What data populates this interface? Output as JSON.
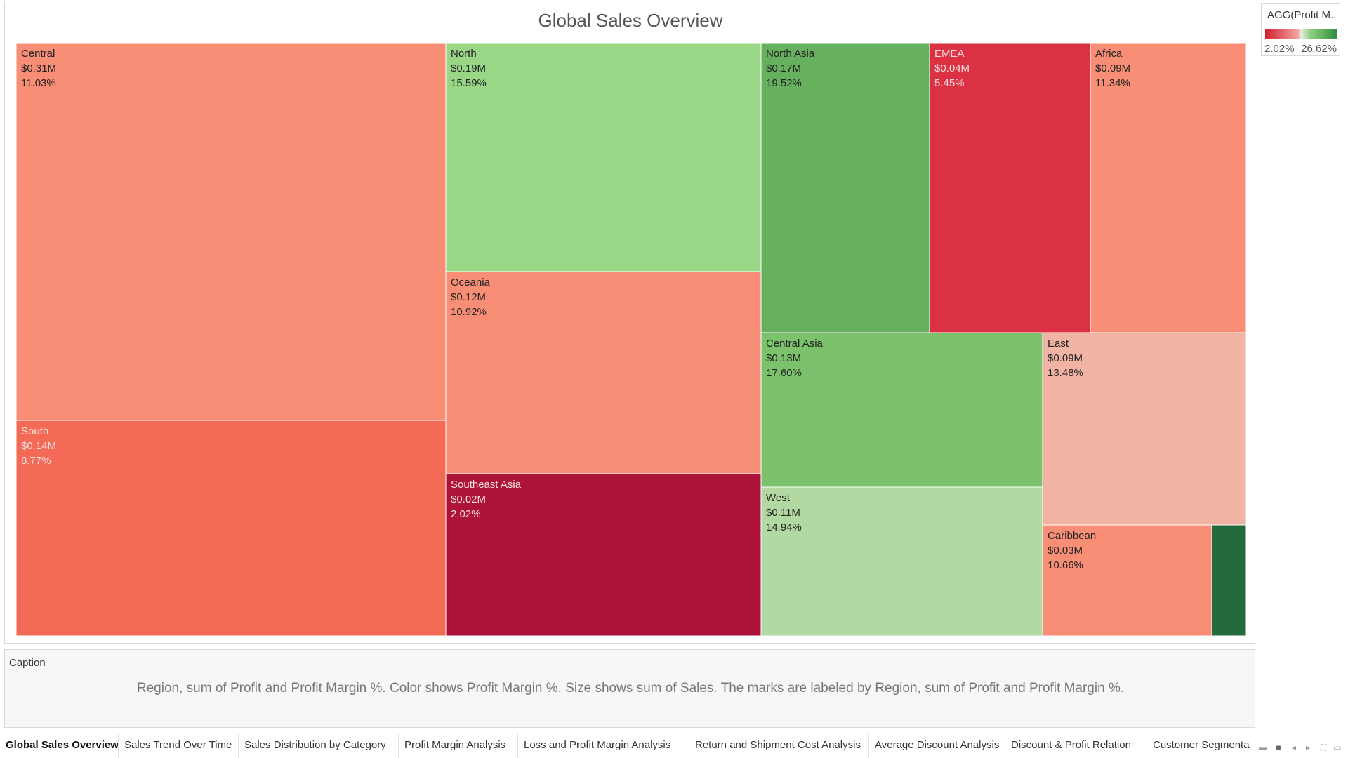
{
  "dashboard": {
    "title": "Global Sales Overview"
  },
  "legend": {
    "title": "AGG(Profit M...",
    "min_label": "2.02%",
    "max_label": "26.62%",
    "colors": {
      "low": "#d3202f",
      "mid": "#e8ede4",
      "high": "#2e8b3e"
    }
  },
  "chart_data": {
    "type": "treemap",
    "title": "Global Sales Overview",
    "size_measure": "sum of Sales",
    "color_measure": "Profit Margin %",
    "color_range": [
      2.02,
      26.62
    ],
    "items": [
      {
        "region": "Central",
        "profit": "$0.31M",
        "margin": "11.03%",
        "margin_value": 11.03,
        "color": "#f98e76"
      },
      {
        "region": "South",
        "profit": "$0.14M",
        "margin": "8.77%",
        "margin_value": 8.77,
        "color": "#f36b56"
      },
      {
        "region": "North",
        "profit": "$0.19M",
        "margin": "15.59%",
        "margin_value": 15.59,
        "color": "#99d787"
      },
      {
        "region": "Oceania",
        "profit": "$0.12M",
        "margin": "10.92%",
        "margin_value": 10.92,
        "color": "#f98e76"
      },
      {
        "region": "Southeast Asia",
        "profit": "$0.02M",
        "margin": "2.02%",
        "margin_value": 2.02,
        "color": "#ad1339"
      },
      {
        "region": "North Asia",
        "profit": "$0.17M",
        "margin": "19.52%",
        "margin_value": 19.52,
        "color": "#66b05e"
      },
      {
        "region": "EMEA",
        "profit": "$0.04M",
        "margin": "5.45%",
        "margin_value": 5.45,
        "color": "#dc3142"
      },
      {
        "region": "Africa",
        "profit": "$0.09M",
        "margin": "11.34%",
        "margin_value": 11.34,
        "color": "#f98e76"
      },
      {
        "region": "Central Asia",
        "profit": "$0.13M",
        "margin": "17.60%",
        "margin_value": 17.6,
        "color": "#7cc26c"
      },
      {
        "region": "West",
        "profit": "$0.11M",
        "margin": "14.94%",
        "margin_value": 14.94,
        "color": "#b2d9a2"
      },
      {
        "region": "East",
        "profit": "$0.09M",
        "margin": "13.48%",
        "margin_value": 13.48,
        "color": "#f1b3a4"
      },
      {
        "region": "Caribbean",
        "profit": "$0.03M",
        "margin": "10.66%",
        "margin_value": 10.66,
        "color": "#f98e76"
      },
      {
        "region": "",
        "profit": "",
        "margin": "",
        "margin_value": 26.62,
        "color": "#236b3d"
      }
    ]
  },
  "caption": {
    "title": "Caption",
    "text": "Region, sum of Profit and Profit Margin %.  Color shows Profit Margin %.  Size shows sum of Sales.  The marks are labeled by Region, sum of Profit and Profit Margin %."
  },
  "tabs": [
    {
      "label": "Global Sales Overview",
      "active": true
    },
    {
      "label": "Sales Trend Over Time",
      "active": false
    },
    {
      "label": "Sales Distribution by Category",
      "active": false
    },
    {
      "label": "Profit Margin Analysis",
      "active": false
    },
    {
      "label": "Loss and Profit Margin Analysis",
      "active": false
    },
    {
      "label": "Return and Shipment Cost Analysis",
      "active": false
    },
    {
      "label": "Average Discount Analysis",
      "active": false
    },
    {
      "label": "Discount & Profit Relation",
      "active": false
    },
    {
      "label": "Customer Segmenta",
      "active": false
    }
  ]
}
